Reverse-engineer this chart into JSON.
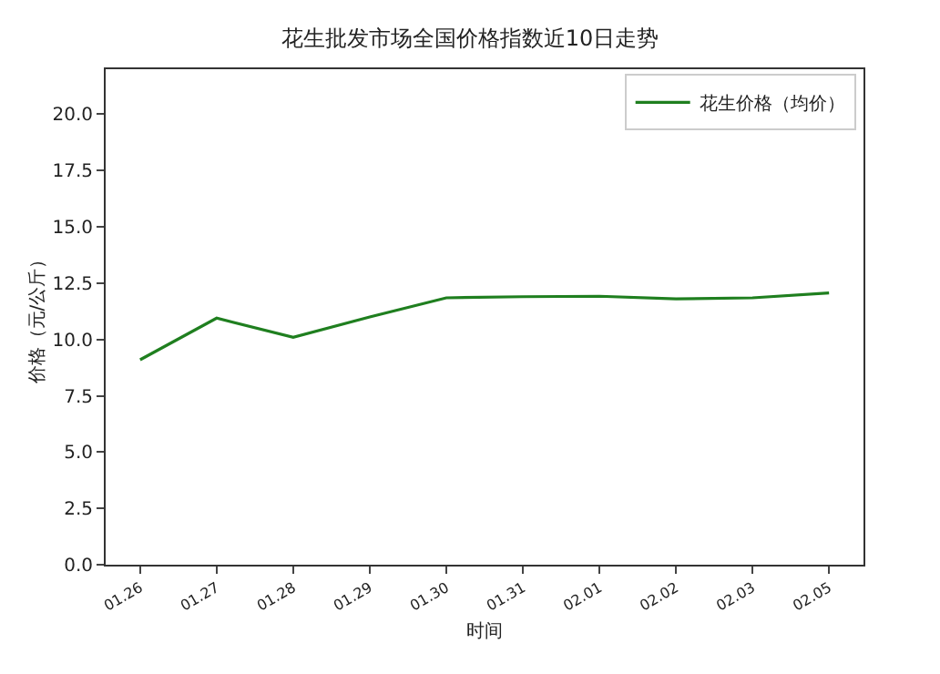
{
  "chart_data": {
    "type": "line",
    "title": "花生批发市场全国价格指数近10日走势",
    "xlabel": "时间",
    "ylabel": "价格（元/公斤）",
    "categories": [
      "01.26",
      "01.27",
      "01.28",
      "01.29",
      "01.30",
      "01.31",
      "02.01",
      "02.02",
      "02.03",
      "02.05"
    ],
    "series": [
      {
        "name": "花生价格（均价）",
        "color": "#1f7f1f",
        "values": [
          9.1,
          10.95,
          10.1,
          11.0,
          11.85,
          11.9,
          11.92,
          11.8,
          11.85,
          12.07
        ]
      }
    ],
    "ylim": [
      0,
      22
    ],
    "yticks": [
      {
        "value": 0,
        "label": "0.0"
      },
      {
        "value": 2.5,
        "label": "2.5"
      },
      {
        "value": 5,
        "label": "5.0"
      },
      {
        "value": 7.5,
        "label": "7.5"
      },
      {
        "value": 10,
        "label": "10.0"
      },
      {
        "value": 12.5,
        "label": "12.5"
      },
      {
        "value": 15,
        "label": "15.0"
      },
      {
        "value": 17.5,
        "label": "17.5"
      },
      {
        "value": 20,
        "label": "20.0"
      }
    ],
    "legend": "top right",
    "marker": "none",
    "line_style": "solid",
    "grid": false
  }
}
